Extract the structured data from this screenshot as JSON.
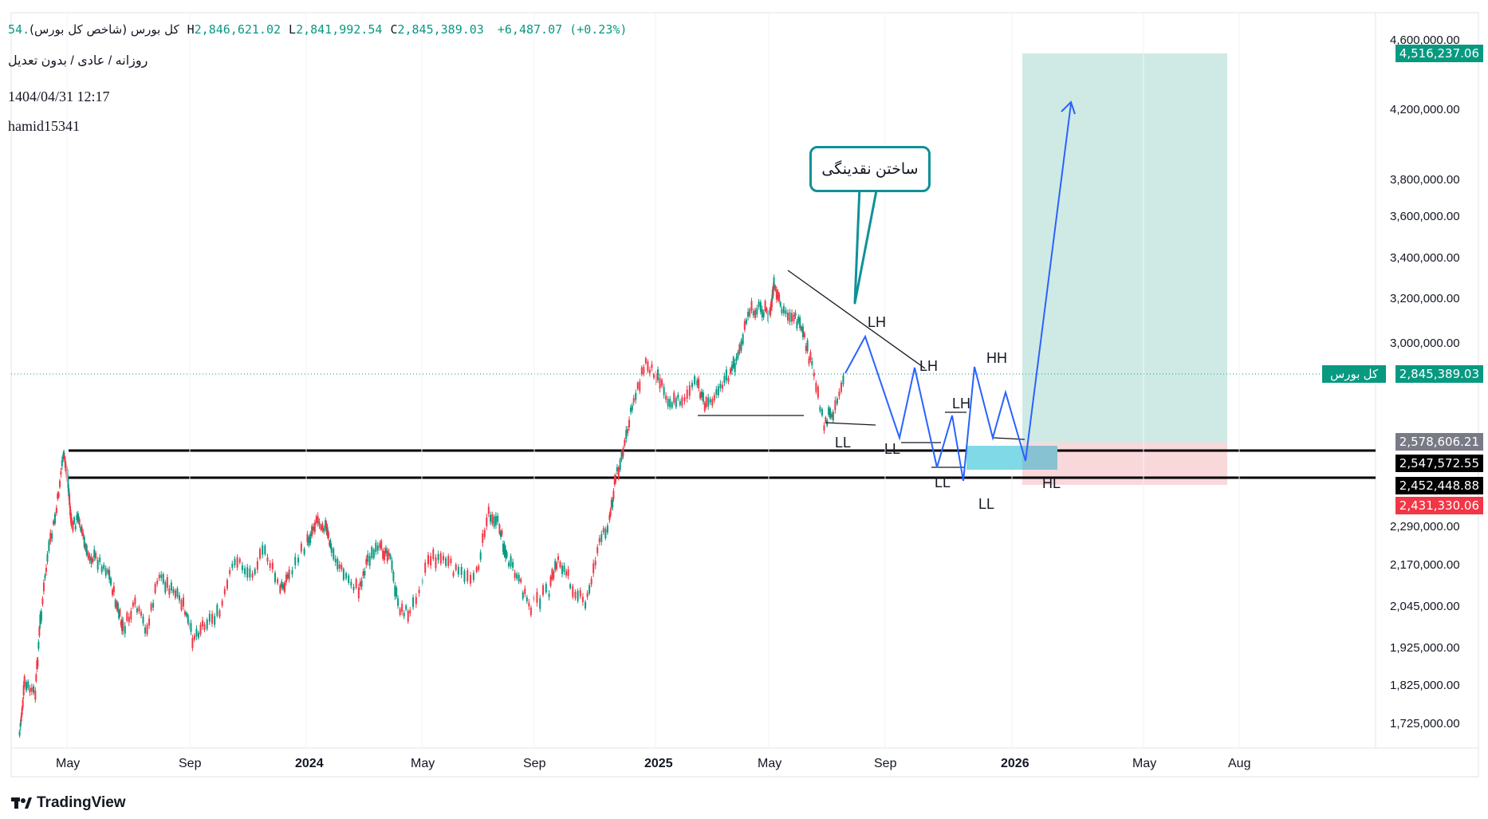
{
  "header": {
    "title": "کل بورس (شاخص کل بورس)",
    "open_fragment": ".54",
    "high_label": "H",
    "high": "2,846,621.02",
    "low_label": "L",
    "low": "2,841,992.54",
    "close_label": "C",
    "close": "2,845,389.03",
    "change": "+6,487.07 (+0.23%)",
    "subtitle": "روزانه / عادی / بدون تعدیل",
    "timestamp": "1404/04/31 12:17",
    "username": "hamid15341"
  },
  "callout": {
    "text": "ساختن نقدینگی"
  },
  "price_axis": {
    "ticks": [
      "4,600,000.00",
      "4,200,000.00",
      "3,800,000.00",
      "3,600,000.00",
      "3,400,000.00",
      "3,200,000.00",
      "3,000,000.00",
      "2,290,000.00",
      "2,170,000.00",
      "2,045,000.00",
      "1,925,000.00",
      "1,825,000.00",
      "1,725,000.00"
    ],
    "labels": {
      "target": "4,516,237.06",
      "symbol": "کل بورس",
      "current": "2,845,389.03",
      "upper_zone": "2,578,606.21",
      "line_top": "2,547,572.55",
      "line_bottom": "2,452,448.88",
      "stop": "2,431,330.06"
    }
  },
  "time_axis": {
    "labels": [
      "May",
      "Sep",
      "2024",
      "May",
      "Sep",
      "2025",
      "May",
      "Sep",
      "2026",
      "May",
      "Aug"
    ]
  },
  "structure_labels": [
    "LH",
    "LH",
    "LH",
    "HH",
    "LL",
    "LL",
    "LL",
    "LL",
    "HL"
  ],
  "colors": {
    "up": "#089981",
    "down": "#f23645",
    "target_zone": "#cfeae4",
    "stop_zone": "#f9d8db",
    "projection": "#2962ff",
    "callout_border": "#0f9197",
    "entry_box": "#7fd9e6"
  },
  "brand": {
    "name": "TradingView"
  }
}
